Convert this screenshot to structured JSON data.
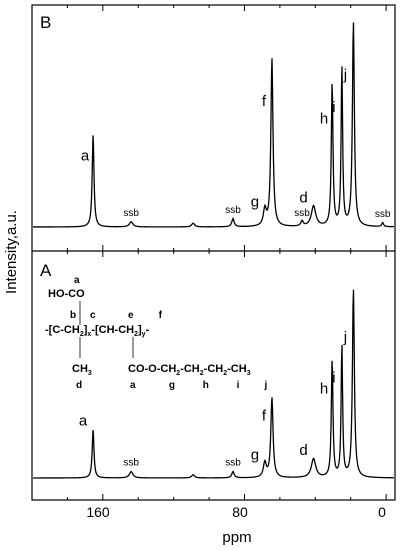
{
  "chart_data": {
    "type": "line",
    "xlabel": "ppm",
    "ylabel": "Intensity,a.u.",
    "xlim": [
      200,
      -5
    ],
    "x_ticks": [
      160,
      80,
      0
    ],
    "x_tick_labels": [
      "160",
      "80",
      "0"
    ],
    "grid": false,
    "panels": [
      {
        "label": "B",
        "peaks": [
          {
            "ppm": 165.5,
            "height": 0.45,
            "width": 0.6,
            "label": "a"
          },
          {
            "ppm": 144.0,
            "height": 0.025,
            "width": 1.2,
            "label": "ssb"
          },
          {
            "ppm": 109.0,
            "height": 0.018,
            "width": 1.0,
            "label": ""
          },
          {
            "ppm": 86.5,
            "height": 0.04,
            "width": 0.8,
            "label": "ssb"
          },
          {
            "ppm": 68.5,
            "height": 0.08,
            "width": 1.0,
            "label": "g"
          },
          {
            "ppm": 64.5,
            "height": 0.82,
            "width": 0.7,
            "label": "f"
          },
          {
            "ppm": 47.5,
            "height": 0.025,
            "width": 0.8,
            "label": "ssb"
          },
          {
            "ppm": 41.0,
            "height": 0.1,
            "width": 1.5,
            "label": "d"
          },
          {
            "ppm": 30.5,
            "height": 0.7,
            "width": 0.55,
            "label": "h"
          },
          {
            "ppm": 25.0,
            "height": 0.78,
            "width": 0.5,
            "label": "i"
          },
          {
            "ppm": 18.5,
            "height": 1.0,
            "width": 0.65,
            "label": "j"
          },
          {
            "ppm": 2.0,
            "height": 0.02,
            "width": 0.6,
            "label": "ssb"
          }
        ]
      },
      {
        "label": "A",
        "peaks": [
          {
            "ppm": 165.5,
            "height": 0.23,
            "width": 0.6,
            "label": "a"
          },
          {
            "ppm": 144.0,
            "height": 0.03,
            "width": 1.2,
            "label": "ssb"
          },
          {
            "ppm": 109.0,
            "height": 0.015,
            "width": 1.0,
            "label": ""
          },
          {
            "ppm": 86.5,
            "height": 0.03,
            "width": 0.8,
            "label": "ssb"
          },
          {
            "ppm": 68.5,
            "height": 0.07,
            "width": 1.0,
            "label": "g"
          },
          {
            "ppm": 64.5,
            "height": 0.38,
            "width": 0.75,
            "label": "f"
          },
          {
            "ppm": 41.0,
            "height": 0.09,
            "width": 1.5,
            "label": "d"
          },
          {
            "ppm": 30.5,
            "height": 0.56,
            "width": 0.55,
            "label": "h"
          },
          {
            "ppm": 25.0,
            "height": 0.63,
            "width": 0.5,
            "label": "i"
          },
          {
            "ppm": 18.5,
            "height": 0.9,
            "width": 0.65,
            "label": "j"
          }
        ]
      }
    ]
  },
  "structure": {
    "top_label": "a",
    "acid_group": "HO-CO",
    "letters_b_c": "b     c",
    "letters_e_f": "e         f",
    "backbone_left": "-[C-CH",
    "backbone_right": "]",
    "backbone_x": "x",
    "backbone_mid": "-[CH-CH",
    "backbone_y": "y",
    "backbone_end": "-",
    "sub2": "2",
    "methyl": "CH",
    "methyl_sub": "3",
    "letter_d": "d",
    "ester_chain": "CO-O-CH",
    "ester_mid1": "-CH",
    "ester_mid2": "-CH",
    "ester_end": "-CH",
    "letters_bottom": "a            g          h          i         j"
  }
}
